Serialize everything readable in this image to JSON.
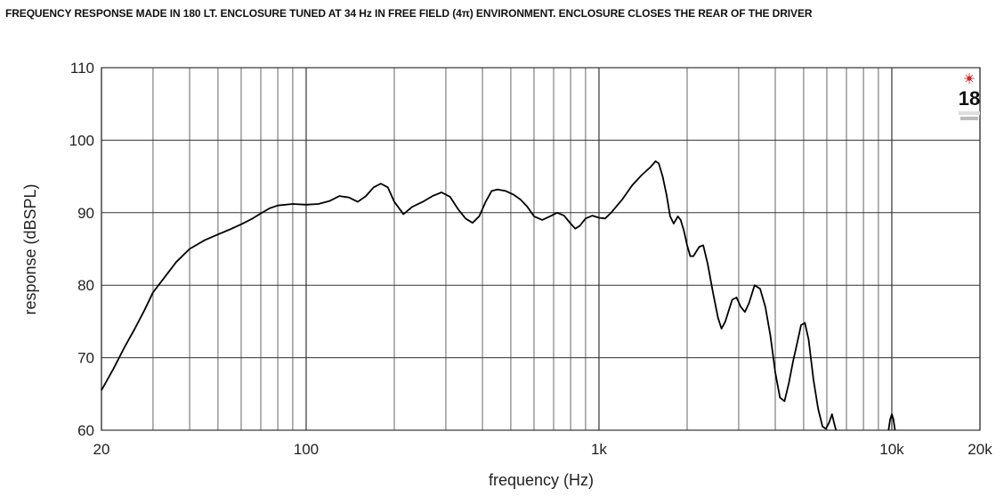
{
  "chart_data": {
    "type": "line",
    "title": "FREQUENCY RESPONSE MADE IN 180 LT. ENCLOSURE TUNED AT 34 Hz IN FREE FIELD (4π) ENVIRONMENT. ENCLOSURE CLOSES THE REAR OF THE DRIVER",
    "xlabel": "frequency (Hz)",
    "ylabel": "response (dBSPL)",
    "x_scale": "log",
    "xlim": [
      20,
      20000
    ],
    "ylim": [
      60,
      110
    ],
    "x_ticks": [
      {
        "value": 20,
        "label": "20"
      },
      {
        "value": 100,
        "label": "100"
      },
      {
        "value": 1000,
        "label": "1k"
      },
      {
        "value": 10000,
        "label": "10k"
      },
      {
        "value": 20000,
        "label": "20k"
      }
    ],
    "y_ticks": [
      {
        "value": 110,
        "label": "110"
      },
      {
        "value": 100,
        "label": "100"
      },
      {
        "value": 90,
        "label": "90"
      },
      {
        "value": 80,
        "label": "80"
      },
      {
        "value": 70,
        "label": "70"
      },
      {
        "value": 60,
        "label": "60"
      }
    ],
    "grid": true,
    "series": [
      {
        "color": "#000000",
        "points": [
          [
            20,
            65.5
          ],
          [
            22,
            68.5
          ],
          [
            24,
            71.5
          ],
          [
            26,
            74
          ],
          [
            28,
            76.5
          ],
          [
            30,
            79
          ],
          [
            33,
            81.2
          ],
          [
            36,
            83.2
          ],
          [
            40,
            85
          ],
          [
            45,
            86.2
          ],
          [
            50,
            87
          ],
          [
            55,
            87.7
          ],
          [
            60,
            88.4
          ],
          [
            65,
            89.1
          ],
          [
            70,
            89.9
          ],
          [
            75,
            90.6
          ],
          [
            80,
            91
          ],
          [
            90,
            91.2
          ],
          [
            100,
            91.1
          ],
          [
            110,
            91.2
          ],
          [
            120,
            91.6
          ],
          [
            130,
            92.3
          ],
          [
            140,
            92.1
          ],
          [
            150,
            91.5
          ],
          [
            160,
            92.3
          ],
          [
            170,
            93.5
          ],
          [
            180,
            94
          ],
          [
            190,
            93.5
          ],
          [
            200,
            91.5
          ],
          [
            215,
            89.8
          ],
          [
            230,
            90.8
          ],
          [
            250,
            91.5
          ],
          [
            270,
            92.3
          ],
          [
            290,
            92.8
          ],
          [
            310,
            92.2
          ],
          [
            330,
            90.5
          ],
          [
            350,
            89.2
          ],
          [
            370,
            88.6
          ],
          [
            390,
            89.5
          ],
          [
            410,
            91.5
          ],
          [
            430,
            93
          ],
          [
            450,
            93.2
          ],
          [
            480,
            93
          ],
          [
            510,
            92.5
          ],
          [
            540,
            91.8
          ],
          [
            570,
            90.8
          ],
          [
            600,
            89.5
          ],
          [
            640,
            89
          ],
          [
            680,
            89.5
          ],
          [
            720,
            90
          ],
          [
            760,
            89.6
          ],
          [
            800,
            88.5
          ],
          [
            830,
            87.8
          ],
          [
            860,
            88.2
          ],
          [
            900,
            89.2
          ],
          [
            950,
            89.6
          ],
          [
            1000,
            89.3
          ],
          [
            1050,
            89.2
          ],
          [
            1100,
            90
          ],
          [
            1200,
            91.8
          ],
          [
            1300,
            93.8
          ],
          [
            1400,
            95.2
          ],
          [
            1500,
            96.3
          ],
          [
            1560,
            97.1
          ],
          [
            1600,
            96.8
          ],
          [
            1650,
            95
          ],
          [
            1700,
            92.5
          ],
          [
            1750,
            89.5
          ],
          [
            1800,
            88.5
          ],
          [
            1860,
            89.5
          ],
          [
            1900,
            89
          ],
          [
            1950,
            87.5
          ],
          [
            2000,
            85.5
          ],
          [
            2050,
            84
          ],
          [
            2100,
            84
          ],
          [
            2200,
            85.3
          ],
          [
            2270,
            85.5
          ],
          [
            2350,
            83
          ],
          [
            2450,
            79
          ],
          [
            2550,
            75.5
          ],
          [
            2620,
            74
          ],
          [
            2700,
            75
          ],
          [
            2850,
            78
          ],
          [
            2950,
            78.3
          ],
          [
            3050,
            77
          ],
          [
            3150,
            76.3
          ],
          [
            3250,
            77.5
          ],
          [
            3400,
            80
          ],
          [
            3550,
            79.5
          ],
          [
            3700,
            77
          ],
          [
            3850,
            73
          ],
          [
            4000,
            68
          ],
          [
            4150,
            64.5
          ],
          [
            4300,
            64
          ],
          [
            4450,
            66.5
          ],
          [
            4600,
            69.5
          ],
          [
            4750,
            72
          ],
          [
            4900,
            74.5
          ],
          [
            5050,
            74.8
          ],
          [
            5200,
            72.5
          ],
          [
            5400,
            67
          ],
          [
            5600,
            63
          ],
          [
            5800,
            60.5
          ],
          [
            5950,
            60.2
          ],
          [
            6100,
            61
          ],
          [
            6250,
            62.2
          ],
          [
            6350,
            61
          ],
          [
            6450,
            60
          ]
        ]
      },
      {
        "color": "#000000",
        "points": [
          [
            9750,
            60
          ],
          [
            9870,
            61.5
          ],
          [
            10000,
            62.2
          ],
          [
            10130,
            61.5
          ],
          [
            10250,
            60
          ]
        ]
      }
    ]
  }
}
